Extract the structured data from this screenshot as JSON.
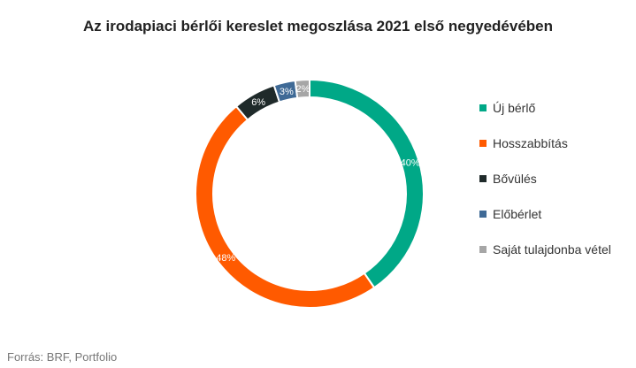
{
  "chart_data": {
    "type": "pie",
    "title": "Az irodapiaci bérlői kereslet megoszlása 2021 első negyedévében",
    "categories": [
      "Új bérlő",
      "Hosszabbítás",
      "Bővülés",
      "Előbérlet",
      "Saját tulajdonba vétel"
    ],
    "values": [
      40,
      48,
      6,
      3,
      2
    ],
    "labels": [
      "40%",
      "48%",
      "6%",
      "3%",
      "2%"
    ],
    "colors": [
      "#00a887",
      "#ff5a00",
      "#1f2a2a",
      "#3f6a96",
      "#a6a6a6"
    ],
    "donut": true,
    "legend_position": "right"
  },
  "legend": {
    "items": [
      {
        "label": "Új bérlő",
        "color": "#00a887"
      },
      {
        "label": "Hosszabbítás",
        "color": "#ff5a00"
      },
      {
        "label": "Bővülés",
        "color": "#1f2a2a"
      },
      {
        "label": "Előbérlet",
        "color": "#3f6a96"
      },
      {
        "label": "Saját tulajdonba vétel",
        "color": "#a6a6a6"
      }
    ]
  },
  "source": "Forrás: BRF, Portfolio"
}
